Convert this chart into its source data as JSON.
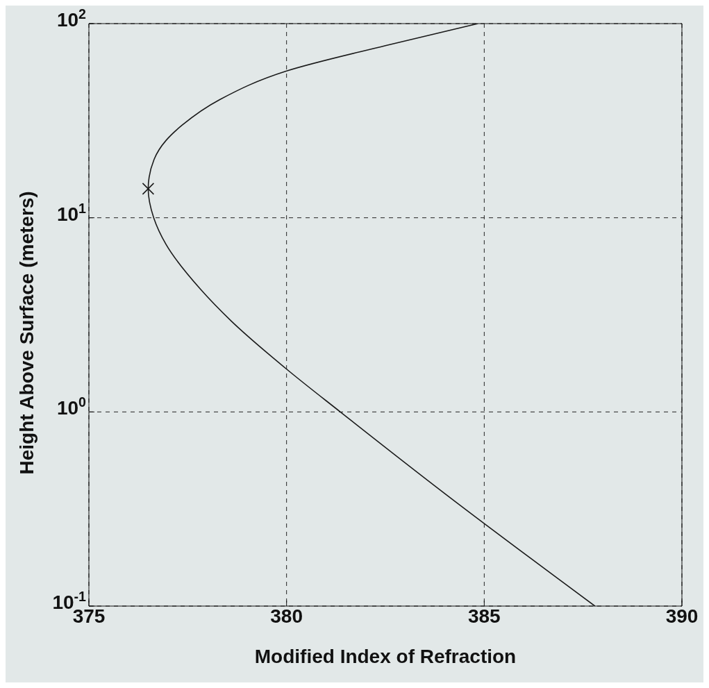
{
  "chart_data": {
    "type": "line",
    "xlabel": "Modified Index of Refraction",
    "ylabel": "Height Above Surface (meters)",
    "xlim": [
      375,
      390
    ],
    "xticks": [
      375,
      380,
      385,
      390
    ],
    "ylim": [
      0.1,
      100
    ],
    "yticks": [
      {
        "value": 0.1,
        "label": "10$^{-1}$"
      },
      {
        "value": 1,
        "label": "10$^{0}$"
      },
      {
        "value": 10,
        "label": "10$^{1}$"
      },
      {
        "value": 100,
        "label": "10$^{2}$"
      }
    ],
    "log": "y",
    "grid": true,
    "series": [
      {
        "color": "#1a1a1a",
        "marker": "none",
        "x": [
          387.8,
          384.0,
          381.36,
          380.05,
          378.6,
          377.83,
          376.95,
          376.64,
          376.5,
          376.65,
          376.95,
          377.36,
          378.31,
          380.0,
          382.5,
          384.84
        ],
        "values": [
          0.1,
          0.38,
          1.0,
          1.63,
          2.94,
          4.27,
          7.3,
          10,
          14.1,
          20,
          25,
          30,
          40.6,
          57,
          77,
          100
        ]
      },
      {
        "type": "scatter",
        "color": "#1a1a1a",
        "marker": "cross",
        "x": [
          376.5
        ],
        "values": [
          14.1
        ]
      }
    ]
  }
}
